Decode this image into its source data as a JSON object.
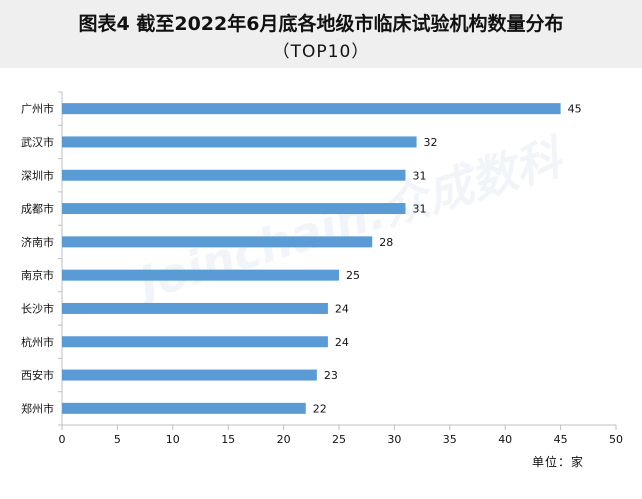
{
  "header": {
    "title_line1": "图表4 截至2022年6月底各地级市临床试验机构数量分布",
    "title_line2": "（TOP10）"
  },
  "watermark": "Joinchain.众成数科",
  "unit_note": "单位：家",
  "colors": {
    "bar": "#5b9bd5",
    "axis": "#bfbfbf",
    "text": "#111111"
  },
  "chart_data": {
    "type": "bar",
    "orientation": "horizontal",
    "categories": [
      "广州市",
      "武汉市",
      "深圳市",
      "成都市",
      "济南市",
      "南京市",
      "长沙市",
      "杭州市",
      "西安市",
      "郑州市"
    ],
    "values": [
      45,
      32,
      31,
      31,
      28,
      25,
      24,
      24,
      23,
      22
    ],
    "xlim": [
      0,
      50
    ],
    "xticks": [
      0,
      5,
      10,
      15,
      20,
      25,
      30,
      35,
      40,
      45,
      50
    ],
    "grid": false,
    "data_labels": true
  }
}
